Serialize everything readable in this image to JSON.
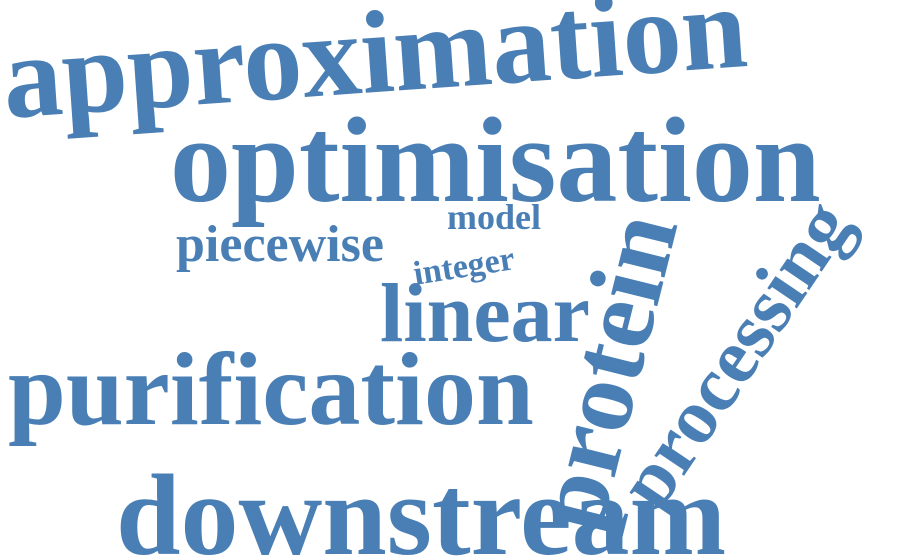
{
  "cloud": {
    "color": "#4a7fb5",
    "words": {
      "approximation": "approximation",
      "optimisation": "optimisation",
      "model": "model",
      "piecewise": "piecewise",
      "integer": "integer",
      "linear": "linear",
      "purification": "purification",
      "protein": "protein",
      "processing": "processing",
      "downstream": "downstream"
    }
  }
}
